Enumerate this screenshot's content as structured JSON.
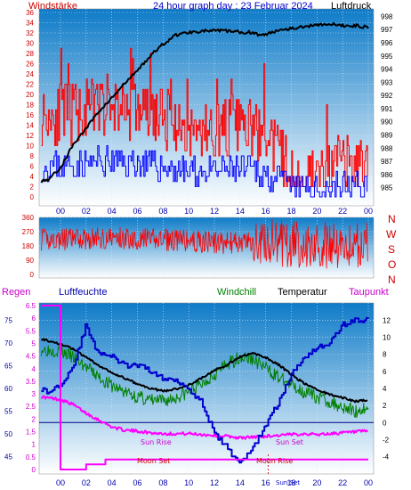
{
  "header": {
    "wind_label": "Windstärke",
    "title": "24 hour graph day : 23 Februar 2024",
    "pressure_label": "Luftdruck"
  },
  "mid": {
    "compass": [
      "N",
      "W",
      "S",
      "O",
      "N"
    ]
  },
  "bottom": {
    "rain_label": "Regen",
    "humidity_label": "Luftfeuchte",
    "windchill_label": "Windchill",
    "temperature_label": "Temperatur",
    "dewpoint_label": "Taupunkt",
    "events": {
      "sun_rise": "Sun Rise",
      "sun_set": "Sun Set",
      "moon_set": "Moon Set",
      "moon_rise": "Moon Rise",
      "sun_set_tick": "Sun Set"
    }
  },
  "colors": {
    "wind_gust": "#ff0000",
    "wind_avg": "#0000ff",
    "pressure": "#000000",
    "direction": "#ff0000",
    "temperature": "#000000",
    "humidity": "#0000cc",
    "windchill": "#008000",
    "dewpoint": "#ff00ff",
    "rain": "#ff00ff",
    "left_axis": "#cc0000",
    "direction_axis": "#cc0000",
    "rain_axis": "#cc00cc",
    "humidity_axis": "#0000aa",
    "plot_top": "#0e7bc8",
    "plot_bottom": "#ffffff"
  },
  "chart_data": [
    {
      "id": "wind_pressure",
      "type": "line",
      "x_ticks": [
        "00",
        "02",
        "04",
        "06",
        "08",
        "10",
        "12",
        "14",
        "16",
        "18",
        "20",
        "22",
        "00"
      ],
      "y_left_ticks": [
        "0",
        "2",
        "4",
        "6",
        "8",
        "10",
        "12",
        "14",
        "16",
        "18",
        "20",
        "22",
        "24",
        "26",
        "28",
        "30",
        "32",
        "34",
        "36"
      ],
      "y_right_ticks": [
        "985",
        "986",
        "987",
        "988",
        "989",
        "990",
        "991",
        "992",
        "993",
        "994",
        "995",
        "996",
        "997",
        "998"
      ],
      "ylim_left": [
        0,
        36
      ],
      "ylim_right": [
        984.3,
        998.3
      ],
      "series": [
        {
          "name": "Windstärke",
          "x": [
            0,
            2,
            4,
            6,
            8,
            10,
            12,
            14,
            16,
            17.5,
            18,
            20,
            22,
            24
          ],
          "values": [
            16,
            17,
            18,
            17,
            15,
            13,
            13,
            14,
            12,
            7,
            4,
            4,
            6,
            6
          ]
        },
        {
          "name": "Luftdruck",
          "x": [
            -1.5,
            -1,
            0,
            1,
            2,
            3,
            4,
            5,
            6,
            7,
            8,
            9,
            10,
            11,
            12,
            13,
            14,
            15,
            15.5,
            16,
            17,
            18,
            19,
            20,
            21,
            22,
            23,
            24
          ],
          "values": [
            985.5,
            985.6,
            986.5,
            988.3,
            989.5,
            990.8,
            991.8,
            992.9,
            993.9,
            995.0,
            995.9,
            996.6,
            996.8,
            996.9,
            996.9,
            996.9,
            996.8,
            996.8,
            996.6,
            996.6,
            997.0,
            997.1,
            997.2,
            997.4,
            997.4,
            997.3,
            997.3,
            997.2
          ]
        }
      ]
    },
    {
      "id": "wind_direction",
      "type": "line",
      "x_ticks": [
        "00",
        "02",
        "04",
        "06",
        "08",
        "10",
        "12",
        "14",
        "16",
        "18",
        "20",
        "22",
        "00"
      ],
      "y_ticks": [
        "0",
        "90",
        "180",
        "270",
        "360"
      ],
      "ylim": [
        0,
        360
      ],
      "series": [
        {
          "name": "Windrichtung",
          "x": [
            0,
            4,
            8,
            12,
            16,
            18,
            20,
            24
          ],
          "values": [
            220,
            230,
            220,
            200,
            200,
            190,
            180,
            190
          ]
        }
      ]
    },
    {
      "id": "temperature_humidity",
      "type": "line",
      "x_ticks": [
        "00",
        "02",
        "04",
        "06",
        "08",
        "10",
        "12",
        "14",
        "16",
        "18",
        "20",
        "22",
        "00"
      ],
      "rain_ticks": [
        "0",
        "0.5",
        "1",
        "1.5",
        "2",
        "2.5",
        "3",
        "3.5",
        "4",
        "4.5",
        "5",
        "5.5",
        "6",
        "6.5"
      ],
      "humidity_ticks": [
        "45",
        "50",
        "55",
        "60",
        "65",
        "70",
        "75"
      ],
      "temperature_ticks": [
        "-4",
        "-2",
        "0",
        "2",
        "4",
        "6",
        "8",
        "10",
        "12"
      ],
      "ylim_temperature": [
        -5.5,
        13.7
      ],
      "ylim_humidity": [
        42.2,
        78.2
      ],
      "series": [
        {
          "name": "Temperatur",
          "x": [
            -1.5,
            0,
            1,
            2,
            3,
            4,
            5,
            6,
            7,
            8,
            9,
            10,
            11,
            12,
            13,
            14,
            15,
            16,
            17,
            18,
            19,
            20,
            21,
            22,
            23,
            24
          ],
          "values": [
            9.8,
            9.2,
            8.6,
            7.6,
            6.7,
            5.8,
            5.2,
            4.5,
            4.0,
            3.7,
            3.9,
            4.4,
            5.2,
            6.1,
            6.8,
            7.7,
            8.1,
            7.6,
            6.8,
            5.6,
            4.6,
            3.8,
            3.3,
            2.9,
            2.5,
            2.6
          ]
        },
        {
          "name": "Windchill",
          "x": [
            -1.5,
            0,
            1,
            2,
            3,
            4,
            5,
            6,
            7,
            8,
            9,
            10,
            11,
            12,
            13,
            14,
            15,
            16,
            17,
            18,
            19,
            20,
            21,
            22,
            23,
            24
          ],
          "values": [
            8.6,
            8.4,
            7.6,
            6.5,
            5.3,
            4.3,
            3.6,
            3.0,
            2.6,
            2.5,
            2.9,
            3.6,
            4.5,
            5.7,
            6.8,
            7.7,
            7.4,
            6.4,
            5.3,
            4.4,
            3.6,
            3.0,
            2.4,
            1.9,
            1.3,
            1.8
          ]
        },
        {
          "name": "Taupunkt",
          "x": [
            -1.5,
            0,
            1,
            2,
            3,
            4,
            5,
            6,
            7,
            8,
            9,
            10,
            11,
            12,
            13,
            14,
            15,
            16,
            17,
            18,
            19,
            20,
            21,
            22,
            23,
            24
          ],
          "values": [
            3.0,
            2.7,
            2.1,
            1.1,
            0.3,
            -0.5,
            -0.9,
            -1.0,
            -1.2,
            -1.3,
            -1.3,
            -1.3,
            -1.4,
            -1.5,
            -1.6,
            -1.8,
            -1.7,
            -1.6,
            -1.5,
            -1.4,
            -1.3,
            -1.4,
            -1.3,
            -1.2,
            -1.1,
            -1.0
          ]
        },
        {
          "name": "Luftfeuchte",
          "x": [
            -1.5,
            -1,
            0,
            1,
            2,
            2.5,
            3,
            4,
            5,
            6,
            7,
            8,
            9,
            10,
            11,
            12,
            13,
            13.5,
            14,
            14.5,
            15,
            16,
            17,
            18,
            19,
            20,
            21,
            22,
            23,
            24
          ],
          "values": [
            60,
            59,
            61,
            65,
            74,
            70,
            68,
            67,
            65,
            65,
            64,
            62,
            62,
            60,
            57,
            50,
            47,
            45,
            44,
            45,
            47,
            52,
            57,
            63,
            67,
            69,
            70,
            74,
            75,
            75
          ]
        },
        {
          "name": "Regen",
          "x": [
            -1.5,
            -0.1,
            0,
            2,
            3.5,
            24
          ],
          "values": [
            6.5,
            6.5,
            0,
            0.2,
            0.4,
            0.4
          ]
        }
      ]
    }
  ]
}
